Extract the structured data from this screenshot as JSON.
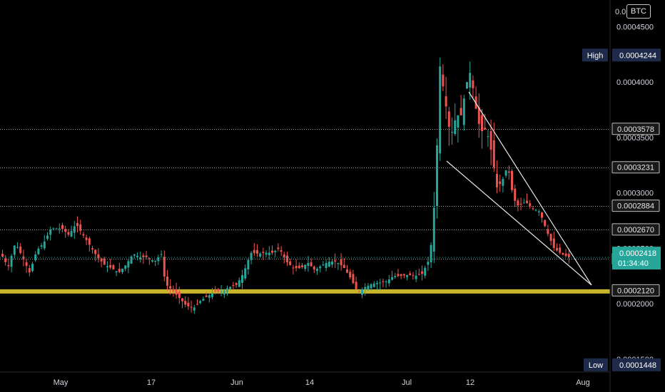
{
  "quote_currency": "BTC",
  "price_scale": {
    "top_label": "0.0",
    "ticks": [
      "0.0004500",
      "0.0004000",
      "0.0003500",
      "0.0003000",
      "0.0002500",
      "0.0002000",
      "0.0001500"
    ],
    "tick_values": [
      0.00045,
      0.0004,
      0.00035,
      0.0003,
      0.00025,
      0.0002,
      0.00015
    ]
  },
  "time_scale": {
    "labels": [
      "May",
      "17",
      "Jun",
      "14",
      "Jul",
      "12",
      "Aug"
    ]
  },
  "high": {
    "label": "High",
    "value": "0.0004244"
  },
  "low": {
    "label": "Low",
    "value": "0.0001448"
  },
  "current": {
    "price": "0.0002418",
    "countdown": "01:34:40"
  },
  "horizontal_levels": [
    "0.0003578",
    "0.0003231",
    "0.0002884",
    "0.0002670",
    "0.0002405",
    "0.0002120"
  ],
  "colors": {
    "up": "#26a69a",
    "down": "#ef5350",
    "support_band": "#c9b52a",
    "badge_dark": "#1e2a4a"
  },
  "chart_data": {
    "type": "candlestick",
    "y_range": [
      0.0001383,
      0.0004741
    ],
    "x_labels": [
      "May",
      "17",
      "Jun",
      "14",
      "Jul",
      "12",
      "Aug"
    ],
    "high": 0.0004244,
    "low": 0.0001448,
    "last": 0.0002418,
    "support_zone": [
      0.0002095,
      0.000213
    ],
    "resistance_levels": [
      0.0003578,
      0.0003231,
      0.0002884,
      0.000267,
      0.0002405,
      0.000212
    ],
    "close_path": [
      [
        0,
        0.000245
      ],
      [
        10,
        0.000233
      ],
      [
        20,
        0.000255
      ],
      [
        30,
        0.000242
      ],
      [
        40,
        0.000228
      ],
      [
        50,
        0.000248
      ],
      [
        60,
        0.000255
      ],
      [
        70,
        0.000268
      ],
      [
        85,
        0.000268
      ],
      [
        95,
        0.000262
      ],
      [
        105,
        0.000272
      ],
      [
        115,
        0.000262
      ],
      [
        125,
        0.000252
      ],
      [
        135,
        0.000242
      ],
      [
        145,
        0.000235
      ],
      [
        155,
        0.000232
      ],
      [
        165,
        0.000228
      ],
      [
        175,
        0.000235
      ],
      [
        185,
        0.000245
      ],
      [
        195,
        0.000242
      ],
      [
        205,
        0.000242
      ],
      [
        215,
        0.000238
      ],
      [
        225,
        0.000245
      ],
      [
        230,
        0.000218
      ],
      [
        240,
        0.000212
      ],
      [
        250,
        0.000205
      ],
      [
        260,
        0.000198
      ],
      [
        270,
        0.000196
      ],
      [
        280,
        0.000203
      ],
      [
        290,
        0.000207
      ],
      [
        300,
        0.000211
      ],
      [
        310,
        0.000211
      ],
      [
        320,
        0.000215
      ],
      [
        330,
        0.000217
      ],
      [
        340,
        0.000228
      ],
      [
        350,
        0.000246
      ],
      [
        360,
        0.000245
      ],
      [
        370,
        0.000246
      ],
      [
        380,
        0.000246
      ],
      [
        390,
        0.00025
      ],
      [
        400,
        0.000238
      ],
      [
        410,
        0.000232
      ],
      [
        420,
        0.000232
      ],
      [
        430,
        0.000237
      ],
      [
        440,
        0.00023
      ],
      [
        450,
        0.000235
      ],
      [
        460,
        0.000238
      ],
      [
        470,
        0.000238
      ],
      [
        480,
        0.000233
      ],
      [
        490,
        0.000223
      ],
      [
        500,
        0.00021
      ],
      [
        510,
        0.000215
      ],
      [
        520,
        0.000218
      ],
      [
        530,
        0.000219
      ],
      [
        540,
        0.00022
      ],
      [
        550,
        0.000225
      ],
      [
        560,
        0.000225
      ],
      [
        570,
        0.000226
      ],
      [
        580,
        0.000225
      ],
      [
        590,
        0.000227
      ],
      [
        600,
        0.00024
      ],
      [
        605,
        0.000265
      ],
      [
        610,
        0.000325
      ],
      [
        615,
        0.000415
      ],
      [
        622,
        0.000385
      ],
      [
        630,
        0.00035
      ],
      [
        638,
        0.00037
      ],
      [
        645,
        0.00037
      ],
      [
        652,
        0.000398
      ],
      [
        658,
        0.00041
      ],
      [
        665,
        0.000378
      ],
      [
        672,
        0.000355
      ],
      [
        680,
        0.000358
      ],
      [
        688,
        0.000335
      ],
      [
        695,
        0.000305
      ],
      [
        702,
        0.00031
      ],
      [
        710,
        0.000325
      ],
      [
        718,
        0.000295
      ],
      [
        725,
        0.000288
      ],
      [
        735,
        0.000292
      ],
      [
        745,
        0.000286
      ],
      [
        755,
        0.000283
      ],
      [
        765,
        0.000265
      ],
      [
        775,
        0.00025
      ],
      [
        785,
        0.000245
      ],
      [
        795,
        0.000242
      ]
    ]
  }
}
